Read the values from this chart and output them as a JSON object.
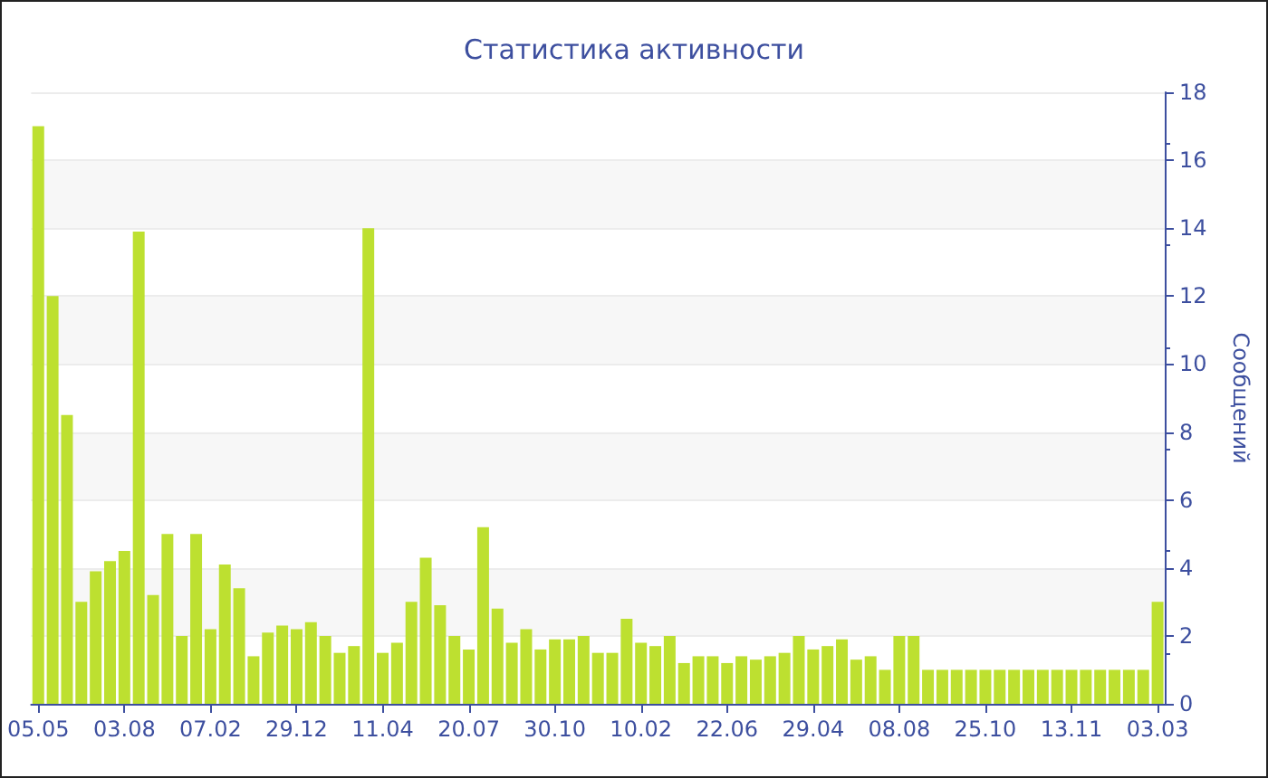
{
  "chart_data": {
    "type": "bar",
    "title": "Статистика активности",
    "ylabel": "Сообщений",
    "categories": [
      "05.05",
      null,
      null,
      null,
      null,
      null,
      "03.08",
      null,
      null,
      null,
      null,
      null,
      "07.02",
      null,
      null,
      null,
      null,
      null,
      "29.12",
      null,
      null,
      null,
      null,
      null,
      "11.04",
      null,
      null,
      null,
      null,
      null,
      "20.07",
      null,
      null,
      null,
      null,
      null,
      "30.10",
      null,
      null,
      null,
      null,
      null,
      "10.02",
      null,
      null,
      null,
      null,
      null,
      "22.06",
      null,
      null,
      null,
      null,
      null,
      "29.04",
      null,
      null,
      null,
      null,
      null,
      "08.08",
      null,
      null,
      null,
      null,
      null,
      "25.10",
      null,
      null,
      null,
      null,
      null,
      "13.11",
      null,
      null,
      null,
      null,
      null,
      "03.03"
    ],
    "values": [
      17,
      12,
      8.5,
      3,
      3.9,
      4.2,
      4.5,
      13.9,
      3.2,
      5,
      2,
      5,
      2.2,
      4.1,
      3.4,
      1.4,
      2.1,
      2.3,
      2.2,
      2.4,
      2,
      1.5,
      1.7,
      14,
      1.5,
      1.8,
      3,
      4.3,
      2.9,
      2,
      1.6,
      5.2,
      2.8,
      1.8,
      2.2,
      1.6,
      1.9,
      1.9,
      2,
      1.5,
      1.5,
      2.5,
      1.8,
      1.7,
      2,
      1.2,
      1.4,
      1.4,
      1.2,
      1.4,
      1.3,
      1.4,
      1.5,
      2,
      1.6,
      1.7,
      1.9,
      1.3,
      1.4,
      1,
      2,
      2,
      1,
      1,
      1,
      1,
      1,
      1,
      1,
      1,
      1,
      1,
      1,
      1,
      1,
      1,
      1,
      1,
      3
    ],
    "color": "#bde030",
    "ylim": [
      0,
      18
    ],
    "yticks": [
      0,
      2,
      4,
      6,
      8,
      10,
      12,
      14,
      16,
      18
    ],
    "grid": "y"
  }
}
